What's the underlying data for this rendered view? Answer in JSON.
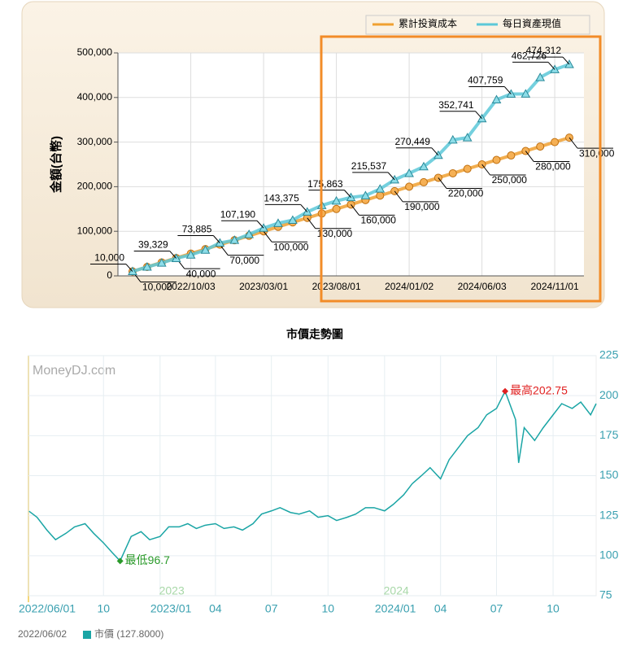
{
  "chart_data": [
    {
      "type": "line",
      "y_label": "金額(台幣)",
      "categories": [
        null,
        null,
        null,
        null,
        "2022/10/03",
        null,
        null,
        null,
        null,
        "2023/03/01",
        null,
        null,
        null,
        null,
        "2023/08/01",
        null,
        null,
        null,
        null,
        "2024/01/02",
        null,
        null,
        null,
        null,
        "2024/06/03",
        null,
        null,
        null,
        null,
        "2024/11/01",
        null
      ],
      "ylim": [
        0,
        500000
      ],
      "yticks": [
        0,
        {
          "value": 100000,
          "label": "100,000"
        },
        {
          "value": 200000,
          "label": "200,000"
        },
        {
          "value": 300000,
          "label": "300,000"
        },
        {
          "value": 400000,
          "label": "400,000"
        },
        {
          "value": 500000,
          "label": "500,000"
        }
      ],
      "grid": true,
      "legend": "top-right",
      "series": [
        {
          "name": "累計投資成本",
          "color": "#f0a030",
          "values": [
            10000,
            20000,
            30000,
            40000,
            50000,
            60000,
            70000,
            80000,
            90000,
            100000,
            110000,
            120000,
            130000,
            140000,
            150000,
            160000,
            170000,
            180000,
            190000,
            200000,
            210000,
            220000,
            230000,
            240000,
            250000,
            260000,
            270000,
            280000,
            290000,
            300000,
            310000
          ],
          "value_labels": [
            "10,000",
            null,
            null,
            "40,000",
            null,
            null,
            "70,000",
            null,
            null,
            "100,000",
            null,
            null,
            "130,000",
            null,
            null,
            "160,000",
            null,
            null,
            "190,000",
            null,
            null,
            "220,000",
            null,
            null,
            "250,000",
            null,
            null,
            "280,000",
            null,
            null,
            "310,000"
          ]
        },
        {
          "name": "每日資產現值",
          "color": "#5cc8d8",
          "values": [
            10000,
            20000,
            29000,
            39329,
            47000,
            58000,
            73885,
            80000,
            93000,
            107190,
            118000,
            125000,
            143375,
            158000,
            168000,
            175863,
            180000,
            195000,
            215537,
            230000,
            245000,
            270449,
            305000,
            310000,
            352741,
            395000,
            407759,
            408000,
            445000,
            462726,
            474312
          ],
          "value_labels": [
            "10,000",
            null,
            null,
            "39,329",
            null,
            null,
            "73,885",
            null,
            null,
            "107,190",
            null,
            null,
            "143,375",
            null,
            null,
            "175,863",
            null,
            null,
            "215,537",
            null,
            null,
            "270,449",
            null,
            null,
            "352,741",
            null,
            "407,759",
            null,
            null,
            "462,726",
            "474,312"
          ]
        }
      ]
    },
    {
      "type": "line",
      "title": "市價走勢圖",
      "watermark": "MoneyDJ.com",
      "year_labels": [
        {
          "x": "2023/01/20",
          "label": "2023"
        },
        {
          "x": "2024/01/20",
          "label": "2024"
        }
      ],
      "x": [
        "2022/06/02",
        "2022/06/15",
        "2022/07/01",
        "2022/07/15",
        "2022/08/01",
        "2022/08/15",
        "2022/09/01",
        "2022/09/15",
        "2022/10/01",
        "2022/10/15",
        "2022/10/28",
        "2022/11/15",
        "2022/12/01",
        "2022/12/15",
        "2023/01/01",
        "2023/01/15",
        "2023/02/01",
        "2023/02/15",
        "2023/03/01",
        "2023/03/15",
        "2023/04/01",
        "2023/04/15",
        "2023/05/01",
        "2023/05/15",
        "2023/06/01",
        "2023/06/15",
        "2023/07/01",
        "2023/07/15",
        "2023/08/01",
        "2023/08/15",
        "2023/09/01",
        "2023/09/15",
        "2023/10/01",
        "2023/10/15",
        "2023/11/01",
        "2023/11/15",
        "2023/12/01",
        "2023/12/15",
        "2024/01/01",
        "2024/01/15",
        "2024/02/01",
        "2024/02/15",
        "2024/03/01",
        "2024/03/15",
        "2024/04/01",
        "2024/04/15",
        "2024/05/01",
        "2024/05/15",
        "2024/06/01",
        "2024/06/15",
        "2024/07/01",
        "2024/07/15",
        "2024/08/01",
        "2024/08/06",
        "2024/08/15",
        "2024/09/01",
        "2024/09/15",
        "2024/10/01",
        "2024/10/15",
        "2024/11/01",
        "2024/11/15",
        "2024/12/01",
        "2024/12/10"
      ],
      "series": [
        {
          "name": "市價",
          "color": "#1aa5a5",
          "values": [
            127.8,
            124,
            116,
            110,
            114,
            118,
            120,
            114,
            108,
            102,
            96.7,
            112,
            115,
            110,
            112,
            118,
            118,
            120,
            117,
            119,
            120,
            117,
            118,
            116,
            120,
            126,
            128,
            130,
            127,
            126,
            128,
            124,
            125,
            122,
            124,
            126,
            130,
            130,
            128,
            132,
            138,
            145,
            150,
            155,
            148,
            160,
            168,
            175,
            180,
            188,
            192,
            202.75,
            185,
            158,
            180,
            172,
            180,
            188,
            195,
            192,
            196,
            188,
            195
          ]
        }
      ],
      "xlim": [
        "2022/06/01",
        "2024/12/10"
      ],
      "xticks": [
        {
          "value": "2022/06/01",
          "label": "2022/06/01"
        },
        {
          "value": "2022/10/01",
          "label": "10"
        },
        {
          "value": "2023/01/01",
          "label": "2023/01"
        },
        {
          "value": "2023/04/01",
          "label": "04"
        },
        {
          "value": "2023/07/01",
          "label": "07"
        },
        {
          "value": "2023/10/01",
          "label": "10"
        },
        {
          "value": "2024/01/01",
          "label": "2024/01"
        },
        {
          "value": "2024/04/01",
          "label": "04"
        },
        {
          "value": "2024/07/01",
          "label": "07"
        },
        {
          "value": "2024/10/01",
          "label": "10"
        }
      ],
      "ylim": [
        75,
        225
      ],
      "yticks": [
        75,
        100,
        125,
        150,
        175,
        200,
        225
      ],
      "grid": true,
      "annotations": [
        {
          "x": "2024/07/15",
          "y": 202.75,
          "label": "最高202.75",
          "color": "#e02020"
        },
        {
          "x": "2022/10/28",
          "y": 96.7,
          "label": "最低96.7",
          "color": "#2a9a2a"
        }
      ],
      "footer": {
        "date": "2022/06/02",
        "text": "市價 (127.8000)"
      }
    }
  ]
}
